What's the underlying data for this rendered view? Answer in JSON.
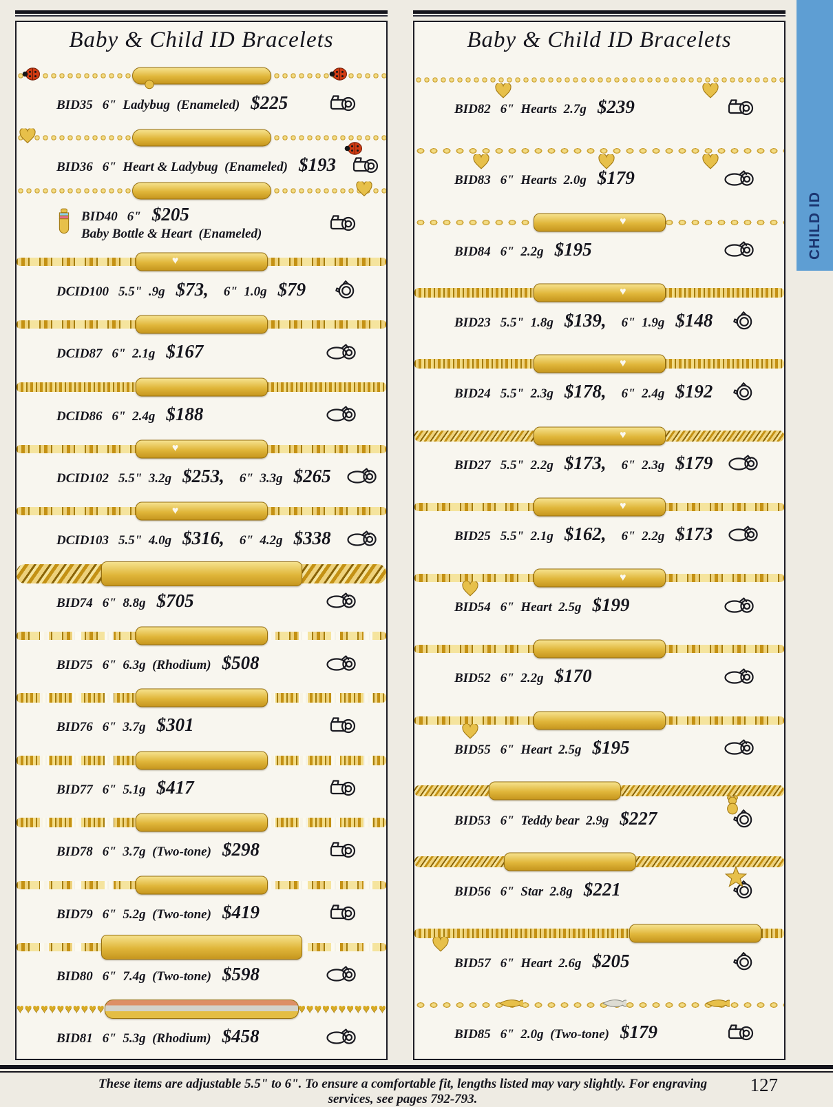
{
  "page": {
    "background": "#eeebe3",
    "accent_gold": "#e0b63a",
    "footer": {
      "note": "These items are adjustable 5.5\" to 6\". To ensure a comfortable fit, lengths listed may vary slightly. For engraving services, see pages 792-793.",
      "page_number": "127"
    },
    "side_tab": {
      "label": "CHILD ID",
      "color": "#5e9ed3",
      "text_color": "#1b3570"
    }
  },
  "columns": [
    {
      "title": "Baby & Child ID Bracelets",
      "items": [
        {
          "code": "BID35",
          "info": "6\"  Ladybug  (Enameled)",
          "price": "$225",
          "icon": "camera",
          "photo": {
            "chain": "rolo",
            "plate": "oval",
            "charms": [
              {
                "t": "ladybug",
                "x": "4%",
                "y": "on"
              },
              {
                "t": "ball",
                "x": "36%",
                "y": "below"
              },
              {
                "t": "ladybug",
                "x": "87%",
                "y": "on"
              }
            ]
          }
        },
        {
          "code": "BID36",
          "info": "6\"  Heart & Ladybug  (Enameled)",
          "price": "$193",
          "icon": "camera",
          "photo": {
            "chain": "rolo",
            "plate": "oval",
            "charms": [
              {
                "t": "heart",
                "x": "3%",
                "y": "on"
              },
              {
                "t": "ladybug",
                "x": "91%",
                "y": "below"
              }
            ]
          }
        },
        {
          "code": "BID40",
          "info": "6\"",
          "price": "$205",
          "line2": "Baby Bottle & Heart  (Enameled)",
          "icon": "camera",
          "photo": {
            "chain": "rolo",
            "plate": "oval",
            "charms": [
              {
                "t": "heart",
                "x": "94%",
                "y": "on"
              },
              {
                "t": "bottle",
                "x": "caption"
              }
            ]
          }
        },
        {
          "code": "DCID100",
          "info": "5.5\"  .9g",
          "price": "$73,",
          "info2": "6\"  1.0g",
          "price2": "$79",
          "icon": "ring",
          "photo": {
            "chain": "figaro",
            "plate": "heart-left"
          }
        },
        {
          "code": "DCID87",
          "info": "6\"  2.1g",
          "price": "$167",
          "icon": "camera-oval",
          "photo": {
            "chain": "figaro",
            "plate": "plain"
          }
        },
        {
          "code": "DCID86",
          "info": "6\"  2.4g",
          "price": "$188",
          "icon": "camera-oval",
          "photo": {
            "chain": "mariner",
            "plate": "plain"
          }
        },
        {
          "code": "DCID102",
          "info": "5.5\"  3.2g",
          "price": "$253,",
          "info2": "6\"  3.3g",
          "price2": "$265",
          "icon": "camera-oval",
          "photo": {
            "chain": "figaro",
            "plate": "heart-left"
          }
        },
        {
          "code": "DCID103",
          "info": "5.5\"  4.0g",
          "price": "$316,",
          "info2": "6\"  4.2g",
          "price2": "$338",
          "icon": "camera-oval",
          "photo": {
            "chain": "figaro",
            "plate": "heart-left"
          }
        },
        {
          "code": "BID74",
          "info": "6\"  8.8g",
          "price": "$705",
          "icon": "camera-oval",
          "photo": {
            "chain": "curb-heavy",
            "plate": "wide"
          }
        },
        {
          "code": "BID75",
          "info": "6\"  6.3g  (Rhodium)",
          "price": "$508",
          "icon": "camera-oval",
          "photo": {
            "chain": "figaro",
            "tone": "two-tone",
            "plate": "plain"
          }
        },
        {
          "code": "BID76",
          "info": "6\"  3.7g",
          "price": "$301",
          "icon": "camera",
          "photo": {
            "chain": "mariner",
            "tone": "two-tone",
            "plate": "plain"
          }
        },
        {
          "code": "BID77",
          "info": "6\"  5.1g",
          "price": "$417",
          "icon": "camera",
          "photo": {
            "chain": "mariner",
            "tone": "two-tone",
            "plate": "plain"
          }
        },
        {
          "code": "BID78",
          "info": "6\"  3.7g  (Two-tone)",
          "price": "$298",
          "icon": "camera",
          "photo": {
            "chain": "mariner",
            "tone": "two-tone",
            "plate": "plain"
          }
        },
        {
          "code": "BID79",
          "info": "6\"  5.2g  (Two-tone)",
          "price": "$419",
          "icon": "camera",
          "photo": {
            "chain": "figaro",
            "tone": "two-tone",
            "plate": "plain"
          }
        },
        {
          "code": "BID80",
          "info": "6\"  7.4g  (Two-tone)",
          "price": "$598",
          "icon": "camera-oval",
          "photo": {
            "chain": "figaro",
            "tone": "two-tone",
            "plate": "wide"
          }
        },
        {
          "code": "BID81",
          "info": "6\"  5.3g  (Rhodium)",
          "price": "$458",
          "icon": "camera-oval",
          "photo": {
            "chain": "hearts",
            "plate": "tri"
          }
        }
      ]
    },
    {
      "title": "Baby & Child ID Bracelets",
      "items": [
        {
          "code": "BID82",
          "info": "6\"  Hearts  2.7g",
          "price": "$239",
          "icon": "camera",
          "photo": {
            "chain": "rolo",
            "plate": "none",
            "charms": [
              {
                "t": "heart",
                "x": "24%",
                "y": "below"
              },
              {
                "t": "heart",
                "x": "80%",
                "y": "below"
              }
            ]
          }
        },
        {
          "code": "BID83",
          "info": "6\"  Hearts  2.0g",
          "price": "$179",
          "icon": "camera-oval",
          "photo": {
            "chain": "cable",
            "plate": "none",
            "charms": [
              {
                "t": "heart",
                "x": "18%",
                "y": "below"
              },
              {
                "t": "heart",
                "x": "52%",
                "y": "below"
              },
              {
                "t": "heart",
                "x": "80%",
                "y": "below"
              }
            ]
          }
        },
        {
          "code": "BID84",
          "info": "6\"  2.2g",
          "price": "$195",
          "icon": "camera-oval",
          "photo": {
            "chain": "cable",
            "plate": "heart-right"
          }
        },
        {
          "code": "BID23",
          "info": "5.5\"  1.8g",
          "price": "$139,",
          "info2": "6\"  1.9g",
          "price2": "$148",
          "icon": "ring",
          "photo": {
            "chain": "mariner",
            "plate": "heart-right"
          }
        },
        {
          "code": "BID24",
          "info": "5.5\"  2.3g",
          "price": "$178,",
          "info2": "6\"  2.4g",
          "price2": "$192",
          "icon": "ring",
          "photo": {
            "chain": "mariner",
            "plate": "heart-right"
          }
        },
        {
          "code": "BID27",
          "info": "5.5\"  2.2g",
          "price": "$173,",
          "info2": "6\"  2.3g",
          "price2": "$179",
          "icon": "camera-oval",
          "photo": {
            "chain": "curb",
            "plate": "heart-right"
          }
        },
        {
          "code": "BID25",
          "info": "5.5\"  2.1g",
          "price": "$162,",
          "info2": "6\"  2.2g",
          "price2": "$173",
          "icon": "camera-oval",
          "photo": {
            "chain": "figaro",
            "plate": "heart-right"
          }
        },
        {
          "code": "BID54",
          "info": "6\"  Heart  2.5g",
          "price": "$199",
          "icon": "camera-oval",
          "photo": {
            "chain": "figaro",
            "plate": "heart-right",
            "charms": [
              {
                "t": "heart",
                "x": "15%",
                "y": "below"
              }
            ]
          }
        },
        {
          "code": "BID52",
          "info": "6\"  2.2g",
          "price": "$170",
          "icon": "camera-oval",
          "photo": {
            "chain": "figaro",
            "plate": "plain"
          }
        },
        {
          "code": "BID55",
          "info": "6\"  Heart  2.5g",
          "price": "$195",
          "icon": "camera-oval",
          "photo": {
            "chain": "figaro",
            "plate": "plain",
            "charms": [
              {
                "t": "heart",
                "x": "15%",
                "y": "below"
              }
            ]
          }
        },
        {
          "code": "BID53",
          "info": "6\"  Teddy bear  2.9g",
          "price": "$227",
          "icon": "ring",
          "photo": {
            "chain": "curb",
            "plate": "plain",
            "plate_x": "38%",
            "charms": [
              {
                "t": "teddy",
                "x": "86%",
                "y": "below"
              }
            ]
          }
        },
        {
          "code": "BID56",
          "info": "6\"  Star  2.8g",
          "price": "$221",
          "icon": "ring",
          "photo": {
            "chain": "curb",
            "plate": "plain",
            "plate_x": "42%",
            "charms": [
              {
                "t": "star",
                "x": "87%",
                "y": "below"
              }
            ]
          }
        },
        {
          "code": "BID57",
          "info": "6\"  Heart  2.6g",
          "price": "$205",
          "icon": "ring",
          "photo": {
            "chain": "mariner",
            "plate": "plain",
            "plate_x": "76%",
            "charms": [
              {
                "t": "heart",
                "x": "7%",
                "y": "below"
              }
            ]
          }
        },
        {
          "code": "BID85",
          "info": "6\"  2.0g  (Two-tone)",
          "price": "$179",
          "icon": "camera",
          "photo": {
            "chain": "cable",
            "plate": "none",
            "charms": [
              {
                "t": "teardrop-gold",
                "x": "26%",
                "y": "on"
              },
              {
                "t": "teardrop-white",
                "x": "54%",
                "y": "on"
              },
              {
                "t": "teardrop-gold",
                "x": "82%",
                "y": "on"
              }
            ]
          }
        }
      ]
    }
  ]
}
